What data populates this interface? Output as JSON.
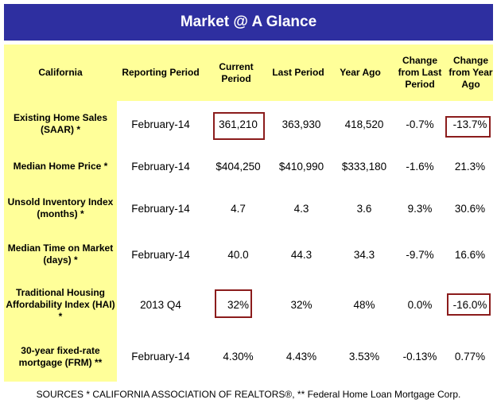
{
  "title": "Market @ A Glance",
  "headers": {
    "region": "California",
    "reporting_period": "Reporting Period",
    "current_period": "Current Period",
    "last_period": "Last Period",
    "year_ago": "Year Ago",
    "change_last": "Change from Last Period",
    "change_year": "Change from Year Ago"
  },
  "rows": [
    {
      "label": "Existing Home Sales (SAAR)  *",
      "period": "February-14",
      "current": "361,210",
      "last": "363,930",
      "year_ago": "418,520",
      "chg_last": "-0.7%",
      "chg_year": "-13.7%"
    },
    {
      "label": "Median Home Price  *",
      "period": "February-14",
      "current": "$404,250",
      "last": "$410,990",
      "year_ago": "$333,180",
      "chg_last": "-1.6%",
      "chg_year": "21.3%"
    },
    {
      "label": "Unsold Inventory Index (months)  *",
      "period": "February-14",
      "current": "4.7",
      "last": "4.3",
      "year_ago": "3.6",
      "chg_last": "9.3%",
      "chg_year": "30.6%"
    },
    {
      "label": "Median Time on Market (days)  *",
      "period": "February-14",
      "current": "40.0",
      "last": "44.3",
      "year_ago": "34.3",
      "chg_last": "-9.7%",
      "chg_year": "16.6%"
    },
    {
      "label": "Traditional Housing Affordability Index (HAI) *",
      "period": "2013 Q4",
      "current": "32%",
      "last": "32%",
      "year_ago": "48%",
      "chg_last": "0.0%",
      "chg_year": "-16.0%"
    },
    {
      "label": "30-year fixed-rate mortgage (FRM)  **",
      "period": "February-14",
      "current": "4.30%",
      "last": "4.43%",
      "year_ago": "3.53%",
      "chg_last": "-0.13%",
      "chg_year": "0.77%"
    }
  ],
  "sources": "SOURCES * CALIFORNIA ASSOCIATION OF REALTORS®, ** Federal Home Loan Mortgage Corp.",
  "colors": {
    "title_bg": "#2e2fa0",
    "highlight": "#ffff99",
    "box_border": "#8b1c1c"
  }
}
